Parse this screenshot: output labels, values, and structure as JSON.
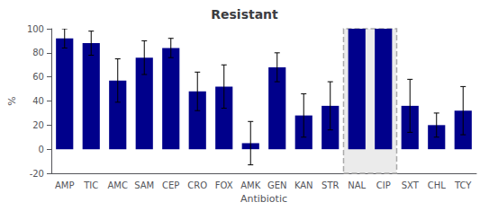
{
  "chart_data": {
    "type": "bar",
    "title": "Resistant",
    "xlabel": "Antibiotic",
    "ylabel": "%",
    "categories": [
      "AMP",
      "TIC",
      "AMC",
      "SAM",
      "CEP",
      "CRO",
      "FOX",
      "AMK",
      "GEN",
      "KAN",
      "STR",
      "NAL",
      "CIP",
      "SXT",
      "CHL",
      "TCY"
    ],
    "values": [
      92,
      88,
      57,
      76,
      84,
      48,
      52,
      5,
      68,
      28,
      36,
      100,
      100,
      36,
      20,
      32
    ],
    "errors": [
      8,
      10,
      18,
      14,
      8,
      16,
      18,
      18,
      12,
      18,
      20,
      0,
      0,
      22,
      10,
      20
    ],
    "color": "#00008B",
    "highlight": [
      "NAL",
      "CIP"
    ],
    "ylim": [
      -20,
      100
    ],
    "yticks": [
      -20,
      0,
      20,
      40,
      60,
      80,
      100
    ],
    "grid": false
  }
}
